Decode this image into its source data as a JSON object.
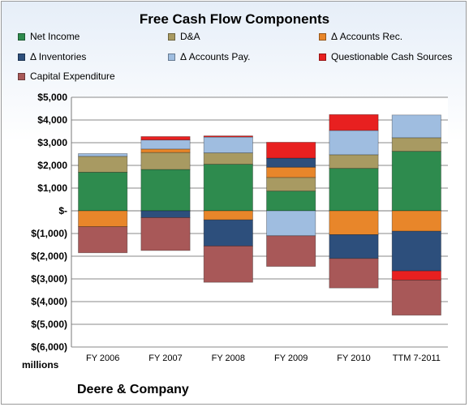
{
  "chart_data": {
    "type": "bar",
    "stacked": true,
    "title": "Free Cash Flow Components",
    "categories": [
      "FY 2006",
      "FY 2007",
      "FY 2008",
      "FY 2009",
      "FY 2010",
      "TTM 7-2011"
    ],
    "ylabel": "millions",
    "ylim": [
      -6000,
      5000
    ],
    "yticks": [
      5000,
      4000,
      3000,
      2000,
      1000,
      0,
      -1000,
      -2000,
      -3000,
      -4000,
      -5000,
      -6000
    ],
    "ytick_labels": [
      "$5,000",
      "$4,000",
      "$3,000",
      "$2,000",
      "$1,000",
      "$-",
      "$(1,000)",
      "$(2,000)",
      "$(3,000)",
      "$(4,000)",
      "$(5,000)",
      "$(6,000)"
    ],
    "grid": true,
    "legend_position": "top",
    "series": [
      {
        "name": "Net Income",
        "color": "#2e8b4e",
        "values": [
          1700,
          1820,
          2050,
          870,
          1870,
          2620
        ]
      },
      {
        "name": "D&A",
        "color": "#a89a62",
        "values": [
          700,
          750,
          500,
          600,
          600,
          600
        ]
      },
      {
        "name": "Δ Accounts Rec.",
        "color": "#e8862a",
        "values": [
          -700,
          150,
          -400,
          450,
          -1050,
          -900
        ]
      },
      {
        "name": "Δ Inventories",
        "color": "#2d4f7c",
        "values": [
          0,
          -300,
          -1150,
          400,
          -1050,
          -1750
        ]
      },
      {
        "name": "Δ Accounts Pay.",
        "color": "#9fbde0",
        "values": [
          120,
          400,
          700,
          -1100,
          1070,
          1000
        ]
      },
      {
        "name": "Questionable Cash Sources",
        "color": "#e82020",
        "values": [
          0,
          150,
          50,
          700,
          700,
          -400
        ]
      },
      {
        "name": "Capital Expenditure",
        "color": "#a85858",
        "values": [
          -1150,
          -1450,
          -1600,
          -1350,
          -1300,
          -1550
        ]
      }
    ]
  },
  "footer": {
    "company": "Deere & Company"
  }
}
